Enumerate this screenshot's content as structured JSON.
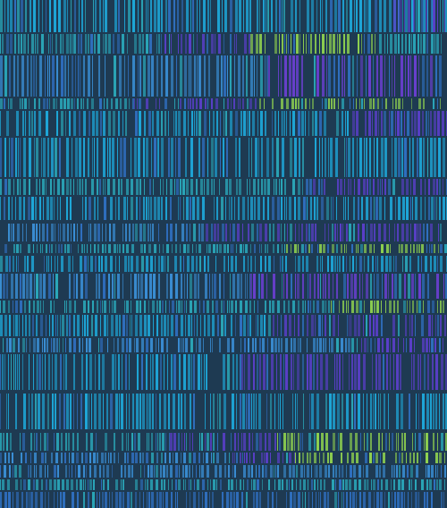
{
  "artwork": {
    "description_visible_text": "",
    "background_color": "#1e3a52",
    "palette": {
      "cyan": "#1ea7d8",
      "sky": "#3a8fd6",
      "blue": "#2f6fbf",
      "violet": "#5a3fc9",
      "purple": "#6a3fd0",
      "lime": "#8fd14f",
      "teal": "#2aa6b8"
    },
    "stripe_color_sequence": [
      "cyan",
      "sky",
      "blue",
      "violet",
      "purple",
      "lime",
      "teal"
    ]
  }
}
